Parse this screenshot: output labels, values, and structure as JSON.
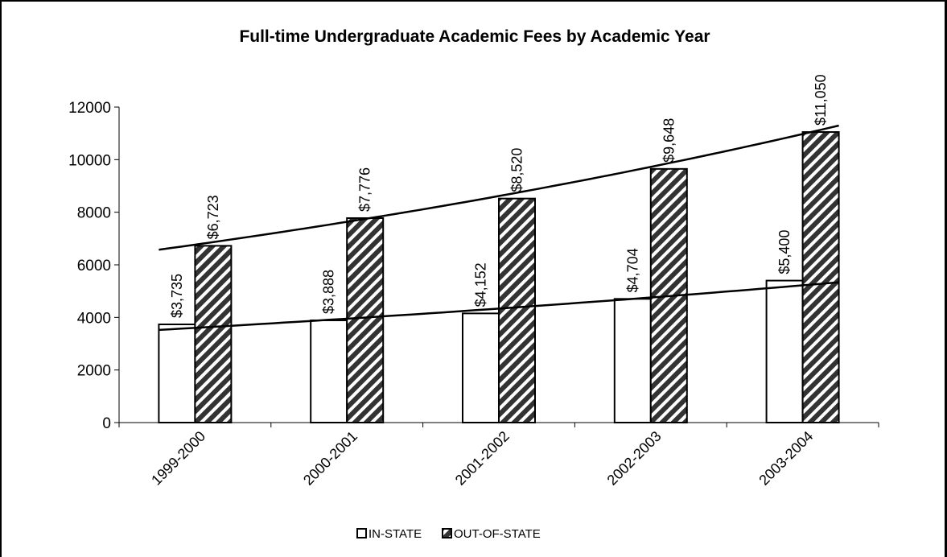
{
  "chart_data": {
    "type": "bar",
    "title": "Full-time Undergraduate Academic Fees by Academic Year",
    "categories": [
      "1999-2000",
      "2000-2001",
      "2001-2002",
      "2002-2003",
      "2003-2004"
    ],
    "series": [
      {
        "name": "IN-STATE",
        "values": [
          3735,
          3888,
          4152,
          4704,
          5400
        ],
        "labels": [
          "$3,735",
          "$3,888",
          "$4,152",
          "$4,704",
          "$5,400"
        ],
        "fill": "white"
      },
      {
        "name": "OUT-OF-STATE",
        "values": [
          6723,
          7776,
          8520,
          9648,
          11050
        ],
        "labels": [
          "$6,723",
          "$7,776",
          "$8,520",
          "$9,648",
          "$11,050"
        ],
        "fill": "diagonal-hatch"
      }
    ],
    "trendlines": [
      {
        "series": "IN-STATE",
        "type": "exponential"
      },
      {
        "series": "OUT-OF-STATE",
        "type": "exponential"
      }
    ],
    "yticks": [
      "0",
      "2000",
      "4000",
      "6000",
      "8000",
      "10000",
      "12000"
    ],
    "ylim": [
      0,
      12000
    ],
    "grid": false,
    "legend": "bottom",
    "colors": {
      "bar_outline": "#000000",
      "hatch_dark": "#333333",
      "background": "#ffffff"
    }
  }
}
